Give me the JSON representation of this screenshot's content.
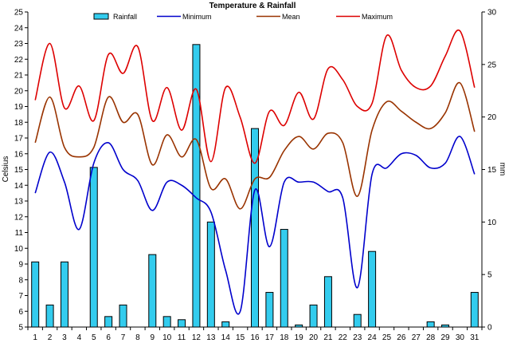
{
  "chart_data": {
    "type": "bar+line",
    "title": "Temperature & Rainfall",
    "ylabel_left": "Celsius",
    "ylabel_right": "mm",
    "categories": [
      "1",
      "2",
      "3",
      "4",
      "5",
      "6",
      "7",
      "8",
      "9",
      "10",
      "11",
      "12",
      "13",
      "14",
      "15",
      "16",
      "17",
      "18",
      "19",
      "20",
      "21",
      "22",
      "23",
      "24",
      "25",
      "26",
      "27",
      "28",
      "29",
      "30",
      "31"
    ],
    "left_axis": {
      "min": 5,
      "max": 25,
      "step": 1
    },
    "right_axis": {
      "min": 0,
      "max": 30,
      "step": 5
    },
    "grid": false,
    "legend_position": "top",
    "series": [
      {
        "name": "Rainfall",
        "kind": "bar",
        "axis": "right",
        "color": "#33CCEE",
        "values": [
          6.2,
          2.1,
          6.2,
          0,
          15.2,
          1.0,
          2.1,
          0,
          6.9,
          1.0,
          0.7,
          26.9,
          10.0,
          0.5,
          0,
          18.9,
          3.3,
          9.3,
          0.2,
          2.1,
          4.8,
          0,
          1.2,
          7.2,
          0,
          0,
          0,
          0.5,
          0.2,
          0,
          3.3
        ]
      },
      {
        "name": "Minimum",
        "kind": "line",
        "axis": "left",
        "color": "#0000CC",
        "values": [
          13.5,
          16.1,
          14.2,
          11.2,
          15.4,
          16.7,
          15.0,
          14.3,
          12.4,
          14.2,
          14.0,
          13.2,
          12.3,
          8.6,
          6.0,
          13.7,
          10.1,
          14.2,
          14.2,
          14.2,
          13.6,
          13.2,
          7.5,
          14.7,
          15.1,
          16.0,
          15.9,
          15.1,
          15.4,
          17.1,
          14.7
        ]
      },
      {
        "name": "Mean",
        "kind": "line",
        "axis": "left",
        "color": "#993300",
        "values": [
          16.7,
          19.6,
          16.4,
          15.8,
          16.4,
          19.6,
          18.0,
          18.5,
          15.3,
          17.2,
          15.8,
          16.9,
          13.8,
          14.4,
          12.5,
          14.4,
          14.5,
          16.2,
          17.1,
          16.3,
          17.3,
          16.7,
          13.3,
          17.5,
          19.3,
          18.7,
          18.0,
          17.6,
          18.6,
          20.5,
          17.4
        ]
      },
      {
        "name": "Maximum",
        "kind": "line",
        "axis": "left",
        "color": "#DD0000",
        "values": [
          19.4,
          23.0,
          18.9,
          20.3,
          18.1,
          22.3,
          21.1,
          22.8,
          18.1,
          20.2,
          17.5,
          20.1,
          15.5,
          20.2,
          18.3,
          15.4,
          18.7,
          17.8,
          19.9,
          18.2,
          21.4,
          20.7,
          19.0,
          19.2,
          23.5,
          21.3,
          20.2,
          20.3,
          22.2,
          23.8,
          20.2
        ]
      }
    ]
  }
}
